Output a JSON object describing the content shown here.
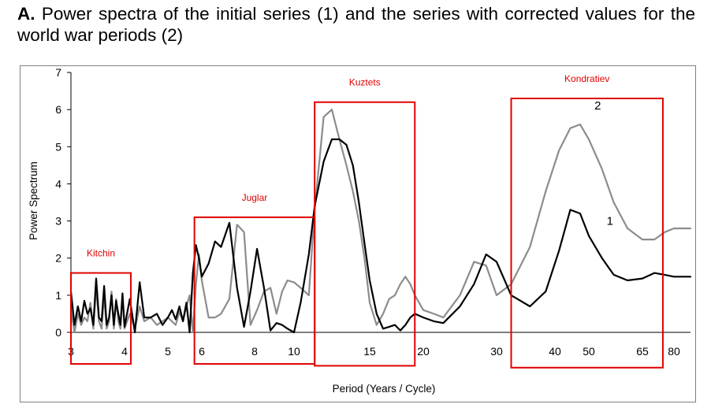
{
  "caption": {
    "label": "A.",
    "text": " Power spectra of the initial series (1) and the series with corrected values for the world war periods (2)"
  },
  "chart_data": {
    "type": "line",
    "xlabel": "Period (Years / Cycle)",
    "ylabel": "Power Spectrum",
    "ylim": [
      0,
      7
    ],
    "yticks": [
      "0",
      "1",
      "2",
      "3",
      "4",
      "5",
      "6",
      "7"
    ],
    "xticks": [
      "3",
      "4",
      "5",
      "6",
      "8",
      "10",
      "15",
      "20",
      "30",
      "40",
      "50",
      "65",
      "80"
    ],
    "x_scale": "frequency (1/period)",
    "grid": false,
    "colors": {
      "series1": "#000000",
      "series2": "#8c8c8c",
      "boxes": "#e00000",
      "box_labels": "#e00000"
    },
    "series": [
      {
        "name": "1",
        "x": [
          3.0,
          3.05,
          3.1,
          3.15,
          3.2,
          3.25,
          3.3,
          3.35,
          3.4,
          3.45,
          3.5,
          3.55,
          3.6,
          3.65,
          3.7,
          3.75,
          3.8,
          3.85,
          3.9,
          3.95,
          4.0,
          4.1,
          4.2,
          4.3,
          4.4,
          4.55,
          4.7,
          4.85,
          5.0,
          5.1,
          5.2,
          5.3,
          5.4,
          5.5,
          5.6,
          5.7,
          5.8,
          5.9,
          6.0,
          6.2,
          6.4,
          6.6,
          6.9,
          7.2,
          7.5,
          7.8,
          8.1,
          8.4,
          8.7,
          9.0,
          9.3,
          9.6,
          10.0,
          10.3,
          10.7,
          11.0,
          11.5,
          12.0,
          12.5,
          13.0,
          13.5,
          14.0,
          14.5,
          15.0,
          15.5,
          16.0,
          16.5,
          17.0,
          17.5,
          18.0,
          18.5,
          19.0,
          20.0,
          21.0,
          22.0,
          24.0,
          26.0,
          28.0,
          30.0,
          32.0,
          35.0,
          38.0,
          41.0,
          44.0,
          47.0,
          50.0,
          53.0,
          56.0,
          60.0,
          65.0,
          70.0,
          75.0,
          80.0,
          85.0,
          90.0
        ],
        "values": [
          1.1,
          0.2,
          0.7,
          0.3,
          0.85,
          0.5,
          0.65,
          0.2,
          1.45,
          0.4,
          0.3,
          1.25,
          0.2,
          0.4,
          1.0,
          0.2,
          0.85,
          0.5,
          0.2,
          1.05,
          0.15,
          0.9,
          0.0,
          1.35,
          0.4,
          0.4,
          0.5,
          0.2,
          0.4,
          0.6,
          0.35,
          0.7,
          0.3,
          0.8,
          0.0,
          1.6,
          2.35,
          2.0,
          1.5,
          1.85,
          2.45,
          2.3,
          2.95,
          1.2,
          0.15,
          1.1,
          2.25,
          1.2,
          0.05,
          0.25,
          0.2,
          0.1,
          0.0,
          0.8,
          2.1,
          3.4,
          4.6,
          5.2,
          5.2,
          5.05,
          4.5,
          3.5,
          2.4,
          1.4,
          0.5,
          0.1,
          0.15,
          0.2,
          0.05,
          0.2,
          0.4,
          0.5,
          0.4,
          0.3,
          0.25,
          0.7,
          1.3,
          2.1,
          1.9,
          1.0,
          0.7,
          1.1,
          2.2,
          3.3,
          3.2,
          2.6,
          2.0,
          1.55,
          1.4,
          1.45,
          1.6,
          1.55,
          1.5,
          1.5,
          1.5
        ]
      },
      {
        "name": "2",
        "x": [
          3.0,
          3.05,
          3.1,
          3.15,
          3.2,
          3.25,
          3.3,
          3.35,
          3.4,
          3.45,
          3.5,
          3.55,
          3.6,
          3.65,
          3.7,
          3.75,
          3.8,
          3.85,
          3.9,
          3.95,
          4.0,
          4.1,
          4.2,
          4.3,
          4.4,
          4.55,
          4.7,
          4.85,
          5.0,
          5.1,
          5.2,
          5.3,
          5.4,
          5.5,
          5.6,
          5.7,
          5.8,
          5.9,
          6.0,
          6.2,
          6.4,
          6.6,
          6.9,
          7.2,
          7.5,
          7.8,
          8.1,
          8.4,
          8.7,
          9.0,
          9.3,
          9.6,
          10.0,
          10.3,
          10.7,
          11.0,
          11.5,
          12.0,
          12.5,
          13.0,
          13.5,
          14.0,
          14.5,
          15.0,
          15.5,
          16.0,
          16.5,
          17.0,
          17.5,
          18.0,
          18.5,
          19.0,
          20.0,
          21.0,
          22.0,
          24.0,
          26.0,
          28.0,
          30.0,
          32.0,
          35.0,
          38.0,
          41.0,
          44.0,
          47.0,
          50.0,
          53.0,
          56.0,
          60.0,
          65.0,
          70.0,
          75.0,
          80.0,
          85.0,
          90.0
        ],
        "values": [
          0.6,
          0.0,
          0.5,
          0.2,
          0.4,
          0.3,
          0.8,
          0.1,
          1.2,
          0.3,
          0.1,
          1.0,
          0.1,
          0.3,
          1.1,
          0.1,
          0.9,
          0.3,
          0.1,
          1.0,
          0.1,
          0.5,
          0.1,
          0.7,
          0.3,
          0.4,
          0.2,
          0.3,
          0.4,
          0.3,
          0.2,
          0.55,
          0.3,
          0.7,
          1.0,
          0.0,
          1.3,
          2.1,
          1.4,
          0.4,
          0.4,
          0.5,
          0.9,
          2.9,
          2.7,
          0.2,
          0.6,
          1.1,
          1.2,
          0.5,
          1.1,
          1.4,
          1.35,
          1.2,
          1.0,
          3.3,
          5.8,
          6.0,
          5.2,
          4.5,
          3.8,
          3.0,
          2.0,
          0.8,
          0.2,
          0.5,
          0.9,
          1.0,
          1.3,
          1.5,
          1.3,
          1.0,
          0.6,
          0.5,
          0.4,
          1.0,
          1.9,
          1.8,
          1.0,
          1.3,
          2.3,
          3.8,
          4.9,
          5.5,
          5.6,
          5.2,
          4.4,
          3.5,
          2.8,
          2.5,
          2.5,
          2.7,
          2.8,
          2.8,
          2.8
        ]
      }
    ],
    "series_labels": [
      {
        "text": "1",
        "series": "1",
        "x": 55,
        "y": 2.9
      },
      {
        "text": "2",
        "series": "2",
        "x": 52,
        "y": 6.0
      }
    ],
    "boxes": [
      {
        "label": "Kitchin",
        "x_from": 2.92,
        "x_to": 4.12,
        "y_from": -0.85,
        "y_to": 1.6
      },
      {
        "label": "Juglar",
        "x_from": 5.75,
        "x_to": 11.0,
        "y_from": -0.85,
        "y_to": 3.1
      },
      {
        "label": "Kuztets",
        "x_from": 11.0,
        "x_to": 19.0,
        "y_from": -0.9,
        "y_to": 6.2
      },
      {
        "label": "Kondratiev",
        "x_from": 32.0,
        "x_to": 74.0,
        "y_from": -0.95,
        "y_to": 6.3
      }
    ]
  }
}
